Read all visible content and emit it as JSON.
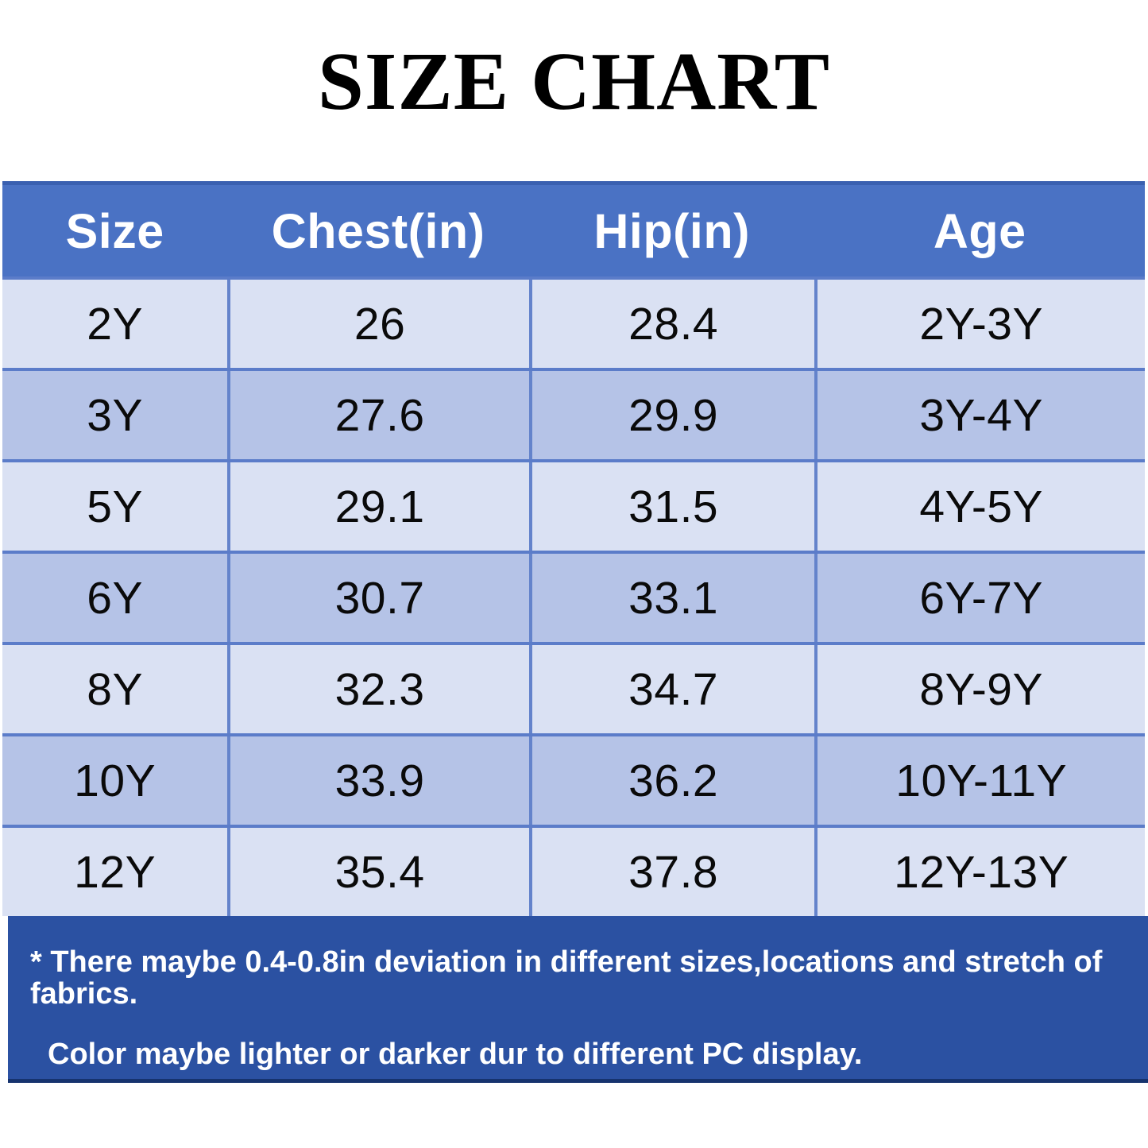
{
  "title": "SIZE CHART",
  "chart_data": {
    "type": "table",
    "title": "SIZE CHART",
    "columns": [
      "Size",
      "Chest(in)",
      "Hip(in)",
      "Age"
    ],
    "rows": [
      [
        "2Y",
        "26",
        "28.4",
        "2Y-3Y"
      ],
      [
        "3Y",
        "27.6",
        "29.9",
        "3Y-4Y"
      ],
      [
        "5Y",
        "29.1",
        "31.5",
        "4Y-5Y"
      ],
      [
        "6Y",
        "30.7",
        "33.1",
        "6Y-7Y"
      ],
      [
        "8Y",
        "32.3",
        "34.7",
        "8Y-9Y"
      ],
      [
        "10Y",
        "33.9",
        "36.2",
        "10Y-11Y"
      ],
      [
        "12Y",
        "35.4",
        "37.8",
        "12Y-13Y"
      ]
    ]
  },
  "footer": {
    "line1": "* There maybe 0.4-0.8in deviation in different sizes,locations and stretch of fabrics.",
    "line2": "Color maybe lighter or darker dur to different PC display."
  },
  "colors": {
    "header_bg": "#4a72c4",
    "row_light": "#dae1f3",
    "row_dark": "#b5c3e7",
    "cell_separator": "#6483cb",
    "table_top_border": "#3a60b0",
    "footer_bg": "#2b51a2",
    "footer_border": "#16336e",
    "header_text": "#ffffff",
    "body_text": "#0a0a0a"
  }
}
